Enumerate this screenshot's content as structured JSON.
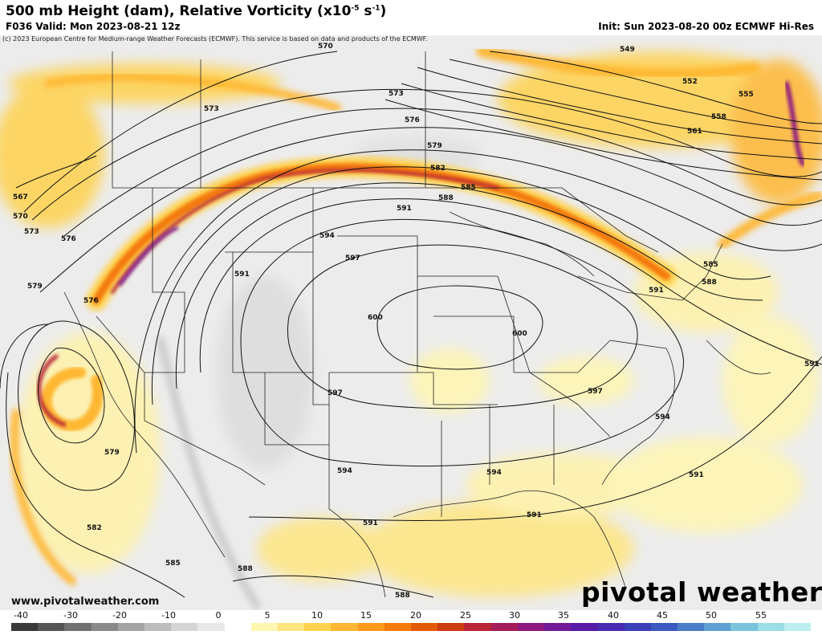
{
  "header": {
    "title_main": "500 mb Height (dam), Relative Vorticity (x10",
    "title_exp": "-5",
    "title_unit_a": " s",
    "title_exp2": "-1",
    "title_end": ")",
    "valid": "F036 Valid: Mon 2023-08-21 12z",
    "init": "Init: Sun 2023-08-20 00z ECMWF Hi-Res",
    "copyright": "(c) 2023 European Centre for Medium-range Weather Forecasts (ECMWF). This service is based on data and products of the ECMWF."
  },
  "footer": {
    "website": "www.pivotalweather.com",
    "brand": "pivotal weather"
  },
  "colorbar": {
    "ticks": [
      "-40",
      "-30",
      "-20",
      "-10",
      "0",
      "5",
      "10",
      "15",
      "20",
      "25",
      "30",
      "35",
      "40",
      "45",
      "50",
      "55"
    ],
    "colors": [
      "#3a3a3a",
      "#555555",
      "#707070",
      "#8a8a8a",
      "#a4a4a4",
      "#bdbdbd",
      "#d4d4d4",
      "#e8e8e8",
      "#ffffff",
      "#fff6b0",
      "#ffe680",
      "#ffd24d",
      "#ffb733",
      "#ff9a1a",
      "#f47a0a",
      "#e25a05",
      "#cc3c10",
      "#b82535",
      "#a41c5a",
      "#8e1a7e",
      "#74199a",
      "#5a1aa8",
      "#4a2ab0",
      "#3c40b8",
      "#3a5ac0",
      "#4a7cc8",
      "#5ea0d2",
      "#78c4dc",
      "#9adfe6",
      "#bdeff0"
    ]
  },
  "contours": [
    {
      "label": "570",
      "color": "#111111"
    },
    {
      "label": "573",
      "color": "#111111"
    },
    {
      "label": "576",
      "color": "#111111"
    },
    {
      "label": "579",
      "color": "#111111"
    },
    {
      "label": "582",
      "color": "#111111"
    },
    {
      "label": "585",
      "color": "#111111"
    },
    {
      "label": "588",
      "color": "#111111"
    },
    {
      "label": "591",
      "color": "#111111"
    },
    {
      "label": "594",
      "color": "#111111"
    },
    {
      "label": "597",
      "color": "#111111"
    },
    {
      "label": "600",
      "color": "#111111"
    },
    {
      "label": "549",
      "color": "#111111"
    },
    {
      "label": "552",
      "color": "#111111"
    },
    {
      "label": "555",
      "color": "#111111"
    },
    {
      "label": "558",
      "color": "#111111"
    },
    {
      "label": "561",
      "color": "#111111"
    },
    {
      "label": "567",
      "color": "#111111"
    }
  ]
}
